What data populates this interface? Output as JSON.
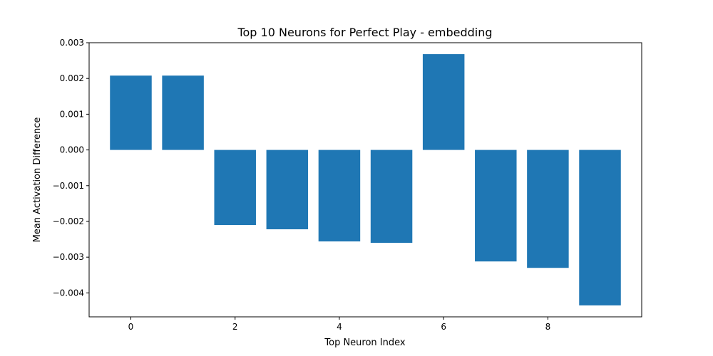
{
  "chart_data": {
    "type": "bar",
    "title": "Top 10 Neurons for Perfect Play - embedding",
    "xlabel": "Top Neuron Index",
    "ylabel": "Mean Activation Difference",
    "categories": [
      0,
      1,
      2,
      3,
      4,
      5,
      6,
      7,
      8,
      9
    ],
    "values": [
      0.00208,
      0.00208,
      -0.0021,
      -0.00222,
      -0.00256,
      -0.0026,
      0.00268,
      -0.00312,
      -0.0033,
      -0.00435
    ],
    "xlim": [
      -0.8,
      9.8
    ],
    "ylim": [
      -0.00467,
      0.003
    ],
    "xticks": [
      0,
      2,
      4,
      6,
      8
    ],
    "xtick_labels": [
      "0",
      "2",
      "4",
      "6",
      "8"
    ],
    "yticks": [
      0.003,
      0.002,
      0.001,
      0.0,
      -0.001,
      -0.002,
      -0.003,
      -0.004
    ],
    "ytick_labels": [
      "0.003",
      "0.002",
      "0.001",
      "0.000",
      "−0.001",
      "−0.002",
      "−0.003",
      "−0.004"
    ],
    "bar_color": "#1f77b4",
    "grid": false,
    "legend": false
  }
}
